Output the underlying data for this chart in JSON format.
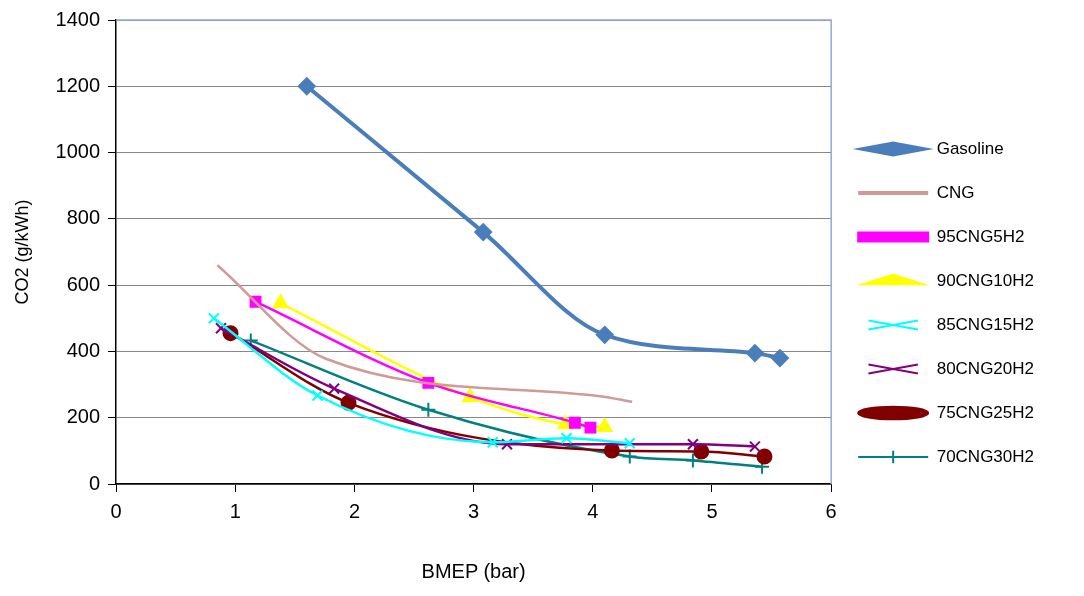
{
  "chart_data": {
    "type": "line",
    "xlabel": "BMEP (bar)",
    "ylabel": "CO2 (g/kWh)",
    "xlim": [
      0,
      6
    ],
    "xticks": [
      0,
      1,
      2,
      3,
      4,
      5,
      6
    ],
    "ylim": [
      0,
      1400
    ],
    "yticks": [
      0,
      200,
      400,
      600,
      800,
      1000,
      1200,
      1400
    ],
    "grid": "y",
    "legend": "right",
    "series": [
      {
        "name": "Gasoline",
        "color": "#4a7ebb",
        "marker": "diamond",
        "x": [
          1.6,
          3.08,
          4.1,
          5.36,
          5.57
        ],
        "values": [
          1200,
          760,
          450,
          395,
          380
        ]
      },
      {
        "name": "CNG",
        "color": "#d09a95",
        "marker": "none",
        "x": [
          0.85,
          1.76,
          4.06,
          4.33
        ],
        "values": [
          660,
          378,
          265,
          248
        ]
      },
      {
        "name": "95CNG5H2",
        "color": "#ff00ff",
        "marker": "square",
        "x": [
          1.17,
          2.62,
          3.85,
          3.98
        ],
        "values": [
          550,
          305,
          185,
          170
        ]
      },
      {
        "name": "90CNG10H2",
        "color": "#ffff00",
        "marker": "triangle",
        "x": [
          1.38,
          2.97,
          3.77,
          4.1
        ],
        "values": [
          545,
          262,
          180,
          172
        ]
      },
      {
        "name": "85CNG15H2",
        "color": "#00ffff",
        "marker": "cross",
        "x": [
          0.82,
          1.69,
          3.16,
          3.78,
          4.31
        ],
        "values": [
          500,
          267,
          126,
          138,
          123
        ]
      },
      {
        "name": "80CNG20H2",
        "color": "#800080",
        "marker": "cross",
        "x": [
          0.88,
          1.83,
          3.28,
          4.84,
          5.36
        ],
        "values": [
          470,
          288,
          120,
          120,
          113
        ]
      },
      {
        "name": "75CNG25H2",
        "color": "#800000",
        "marker": "circle",
        "x": [
          0.96,
          1.95,
          4.16,
          4.91,
          5.44
        ],
        "values": [
          455,
          245,
          101,
          98,
          83
        ]
      },
      {
        "name": "70CNG30H2",
        "color": "#008080",
        "marker": "plus",
        "x": [
          1.13,
          2.62,
          4.31,
          4.84,
          5.42
        ],
        "values": [
          433,
          224,
          83,
          71,
          52
        ]
      }
    ]
  }
}
